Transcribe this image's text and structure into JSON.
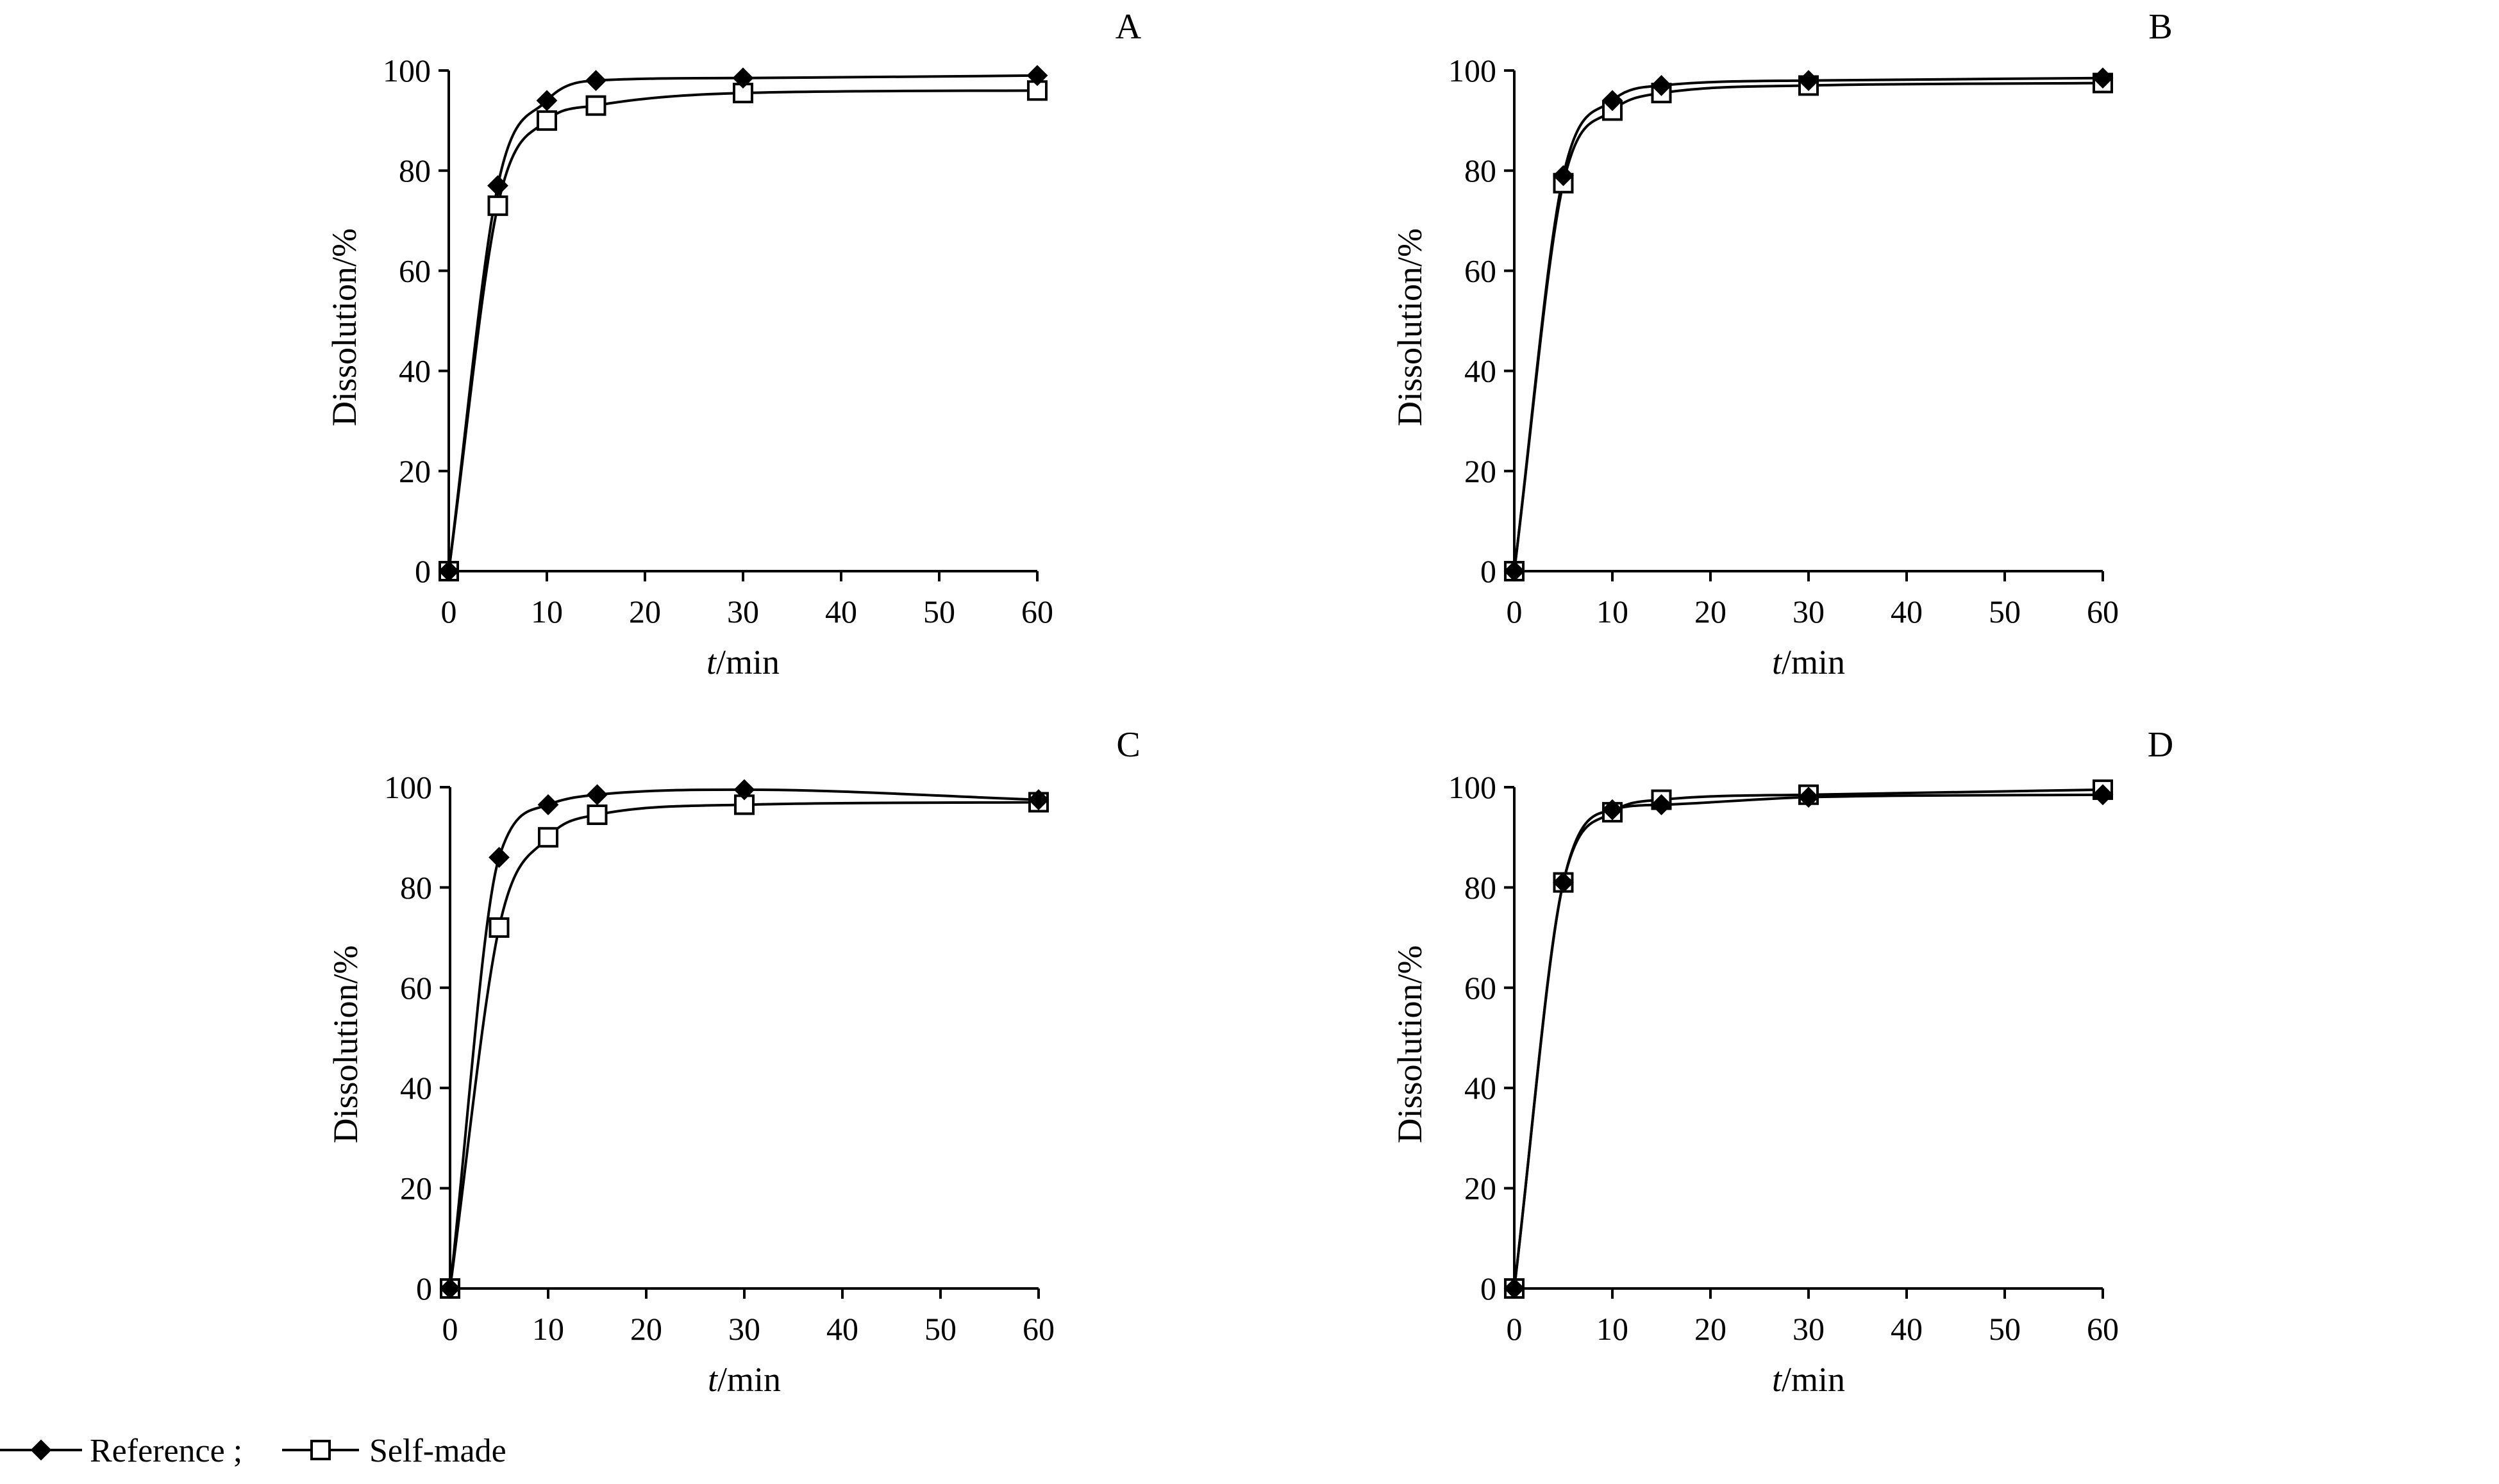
{
  "chart_data": [
    {
      "type": "line",
      "panel_label": "A",
      "xlabel_italic": "t",
      "xlabel_rest": "/min",
      "ylabel": "Dissolution/%",
      "xlim": [
        0,
        60
      ],
      "ylim": [
        0,
        100
      ],
      "xticks": [
        0,
        10,
        20,
        30,
        40,
        50,
        60
      ],
      "yticks": [
        0,
        20,
        40,
        60,
        80,
        100
      ],
      "x": [
        0,
        5,
        10,
        15,
        30,
        60
      ],
      "series": [
        {
          "name": "Reference",
          "marker": "diamond-filled",
          "values": [
            0,
            77,
            94,
            98,
            98.5,
            99
          ]
        },
        {
          "name": "Self-made",
          "marker": "square-open",
          "values": [
            0,
            73,
            90,
            93,
            95.5,
            96
          ]
        }
      ]
    },
    {
      "type": "line",
      "panel_label": "B",
      "xlabel_italic": "t",
      "xlabel_rest": "/min",
      "ylabel": "Dissolution/%",
      "xlim": [
        0,
        60
      ],
      "ylim": [
        0,
        100
      ],
      "xticks": [
        0,
        10,
        20,
        30,
        40,
        50,
        60
      ],
      "yticks": [
        0,
        20,
        40,
        60,
        80,
        100
      ],
      "x": [
        0,
        5,
        10,
        15,
        30,
        60
      ],
      "series": [
        {
          "name": "Reference",
          "marker": "diamond-filled",
          "values": [
            0,
            79,
            94,
            97,
            98,
            98.5
          ]
        },
        {
          "name": "Self-made",
          "marker": "square-open",
          "values": [
            0,
            77.5,
            92,
            95.5,
            97,
            97.5
          ]
        }
      ]
    },
    {
      "type": "line",
      "panel_label": "C",
      "xlabel_italic": "t",
      "xlabel_rest": "/min",
      "ylabel": "Dissolution/%",
      "xlim": [
        0,
        60
      ],
      "ylim": [
        0,
        100
      ],
      "xticks": [
        0,
        10,
        20,
        30,
        40,
        50,
        60
      ],
      "yticks": [
        0,
        20,
        40,
        60,
        80,
        100
      ],
      "x": [
        0,
        5,
        10,
        15,
        30,
        60
      ],
      "series": [
        {
          "name": "Reference",
          "marker": "diamond-filled",
          "values": [
            0,
            86,
            96.5,
            98.5,
            99.5,
            97.5
          ]
        },
        {
          "name": "Self-made",
          "marker": "square-open",
          "values": [
            0,
            72,
            90,
            94.5,
            96.5,
            97
          ]
        }
      ]
    },
    {
      "type": "line",
      "panel_label": "D",
      "xlabel_italic": "t",
      "xlabel_rest": "/min",
      "ylabel": "Dissolution/%",
      "xlim": [
        0,
        60
      ],
      "ylim": [
        0,
        100
      ],
      "xticks": [
        0,
        10,
        20,
        30,
        40,
        50,
        60
      ],
      "yticks": [
        0,
        20,
        40,
        60,
        80,
        100
      ],
      "x": [
        0,
        5,
        10,
        15,
        30,
        60
      ],
      "series": [
        {
          "name": "Reference",
          "marker": "diamond-filled",
          "values": [
            0,
            81,
            95.5,
            96.5,
            98,
            98.5
          ]
        },
        {
          "name": "Self-made",
          "marker": "square-open",
          "values": [
            0,
            81,
            95,
            97.5,
            98.5,
            99.5
          ]
        }
      ]
    }
  ],
  "legend": {
    "items": [
      {
        "label": "Reference ;",
        "marker": "diamond-filled"
      },
      {
        "label": "Self-made",
        "marker": "square-open"
      }
    ],
    "placement": "bottom-left"
  },
  "colors": {
    "line": "#000000",
    "background": "#ffffff"
  }
}
